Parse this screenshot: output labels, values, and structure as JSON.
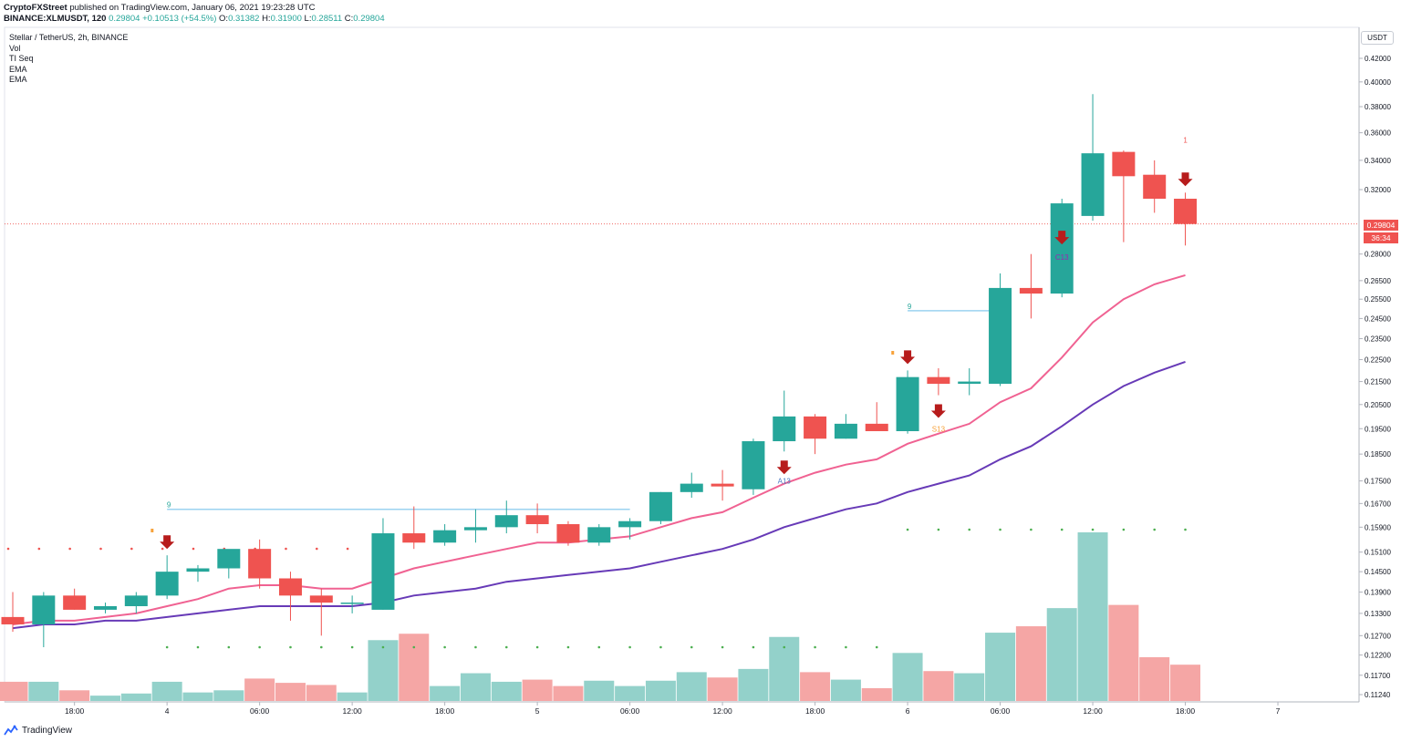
{
  "header": {
    "publisher": "CryptoFXStreet",
    "published_text": "published on TradingView.com, January 06, 2021 19:23:28 UTC",
    "symbol": "BINANCE:XLMUSDT, 120",
    "last": "0.29804",
    "change": "+0.10513 (+54.5%)",
    "o_label": "O:",
    "o_value": "0.31382",
    "h_label": "H:",
    "h_value": "0.31900",
    "l_label": "L:",
    "l_value": "0.28511",
    "c_label": "C:",
    "c_value": "0.29804"
  },
  "legend": {
    "title": "Stellar / TetherUS, 2h, BINANCE",
    "items": [
      "Vol",
      "TI Seq",
      "EMA",
      "EMA"
    ]
  },
  "price_axis": {
    "unit": "USDT",
    "current_price": "0.29804",
    "countdown": "36:34"
  },
  "footer": {
    "brand": "TradingView"
  },
  "colors": {
    "up": "#26a69a",
    "down": "#ef5350",
    "vol_up": "#93d1ca",
    "vol_down": "#f5a6a5",
    "ema_fast": "#f06292",
    "ema_slow": "#673ab7",
    "signal_arrow": "#b71c1c",
    "level_line": "#9bd3f0"
  },
  "chart_data": {
    "type": "candlestick",
    "title": "Stellar / TetherUS, 2h, BINANCE",
    "price_ticks": [
      "0.42000",
      "0.40000",
      "0.38000",
      "0.36000",
      "0.34000",
      "0.32000",
      "0.28000",
      "0.26500",
      "0.25500",
      "0.24500",
      "0.23500",
      "0.22500",
      "0.21500",
      "0.20500",
      "0.19500",
      "0.18500",
      "0.17500",
      "0.16700",
      "0.15900",
      "0.15100",
      "0.14500",
      "0.13900",
      "0.13300",
      "0.12700",
      "0.12200",
      "0.11700",
      "0.11240"
    ],
    "time_ticks": [
      "18:00",
      "4",
      "06:00",
      "12:00",
      "18:00",
      "5",
      "06:00",
      "12:00",
      "18:00",
      "6",
      "06:00",
      "12:00",
      "18:00",
      "7"
    ],
    "ohlc": [
      [
        0.132,
        0.139,
        0.128,
        0.13
      ],
      [
        0.13,
        0.139,
        0.124,
        0.138
      ],
      [
        0.138,
        0.14,
        0.134,
        0.134
      ],
      [
        0.134,
        0.136,
        0.133,
        0.135
      ],
      [
        0.135,
        0.139,
        0.133,
        0.138
      ],
      [
        0.138,
        0.15,
        0.137,
        0.145
      ],
      [
        0.145,
        0.147,
        0.142,
        0.146
      ],
      [
        0.146,
        0.151,
        0.143,
        0.152
      ],
      [
        0.152,
        0.155,
        0.14,
        0.143
      ],
      [
        0.143,
        0.145,
        0.131,
        0.138
      ],
      [
        0.138,
        0.14,
        0.127,
        0.136
      ],
      [
        0.136,
        0.138,
        0.133,
        0.136
      ],
      [
        0.134,
        0.162,
        0.134,
        0.157
      ],
      [
        0.157,
        0.166,
        0.152,
        0.154
      ],
      [
        0.154,
        0.16,
        0.153,
        0.158
      ],
      [
        0.158,
        0.165,
        0.154,
        0.159
      ],
      [
        0.159,
        0.168,
        0.157,
        0.163
      ],
      [
        0.163,
        0.167,
        0.157,
        0.16
      ],
      [
        0.16,
        0.161,
        0.153,
        0.154
      ],
      [
        0.154,
        0.16,
        0.153,
        0.159
      ],
      [
        0.159,
        0.162,
        0.155,
        0.161
      ],
      [
        0.161,
        0.171,
        0.16,
        0.171
      ],
      [
        0.171,
        0.178,
        0.169,
        0.174
      ],
      [
        0.174,
        0.179,
        0.168,
        0.173
      ],
      [
        0.172,
        0.191,
        0.17,
        0.19
      ],
      [
        0.19,
        0.211,
        0.186,
        0.2
      ],
      [
        0.2,
        0.201,
        0.185,
        0.191
      ],
      [
        0.191,
        0.201,
        0.191,
        0.197
      ],
      [
        0.197,
        0.206,
        0.194,
        0.194
      ],
      [
        0.194,
        0.22,
        0.193,
        0.217
      ],
      [
        0.217,
        0.221,
        0.209,
        0.214
      ],
      [
        0.214,
        0.221,
        0.209,
        0.215
      ],
      [
        0.214,
        0.269,
        0.213,
        0.261
      ],
      [
        0.261,
        0.28,
        0.245,
        0.258
      ],
      [
        0.258,
        0.314,
        0.256,
        0.311
      ],
      [
        0.303,
        0.39,
        0.3,
        0.345
      ],
      [
        0.346,
        0.347,
        0.287,
        0.329
      ],
      [
        0.33,
        0.34,
        0.305,
        0.314
      ],
      [
        0.314,
        0.318,
        0.285,
        0.298
      ]
    ],
    "volume": [
      18,
      18,
      10,
      5,
      7,
      18,
      8,
      10,
      21,
      17,
      15,
      8,
      57,
      63,
      14,
      26,
      18,
      20,
      14,
      19,
      14,
      19,
      27,
      22,
      30,
      60,
      27,
      20,
      12,
      45,
      28,
      26,
      64,
      70,
      87,
      158,
      90,
      41,
      34
    ],
    "ema_fast": [
      0.13,
      0.131,
      0.131,
      0.132,
      0.133,
      0.135,
      0.137,
      0.14,
      0.141,
      0.141,
      0.14,
      0.14,
      0.143,
      0.146,
      0.148,
      0.15,
      0.152,
      0.154,
      0.154,
      0.155,
      0.156,
      0.159,
      0.162,
      0.164,
      0.169,
      0.174,
      0.178,
      0.181,
      0.183,
      0.189,
      0.193,
      0.197,
      0.206,
      0.212,
      0.226,
      0.243,
      0.255,
      0.263,
      0.268
    ],
    "ema_slow": [
      0.129,
      0.13,
      0.13,
      0.131,
      0.131,
      0.132,
      0.133,
      0.134,
      0.135,
      0.135,
      0.135,
      0.135,
      0.136,
      0.138,
      0.139,
      0.14,
      0.142,
      0.143,
      0.144,
      0.145,
      0.146,
      0.148,
      0.15,
      0.152,
      0.155,
      0.159,
      0.162,
      0.165,
      0.167,
      0.171,
      0.174,
      0.177,
      0.183,
      0.188,
      0.196,
      0.205,
      0.213,
      0.219,
      0.224
    ],
    "sell_arrows": [
      5,
      25,
      29,
      30,
      34,
      38
    ],
    "seq_labels": [
      {
        "index": 5,
        "text": "9",
        "color": "#26a69a",
        "level": 0.165
      },
      {
        "index": 29,
        "text": "9",
        "color": "#26a69a",
        "level": 0.249
      },
      {
        "index": 25,
        "text": "A13",
        "color": "#4a78c4"
      },
      {
        "index": 30,
        "text": "S13",
        "color": "#f7a23a"
      },
      {
        "index": 34,
        "text": "C13",
        "color": "#9c27b0"
      },
      {
        "index": 38,
        "text": "1",
        "color": "#ef5350"
      }
    ],
    "ylabel": "USDT"
  }
}
